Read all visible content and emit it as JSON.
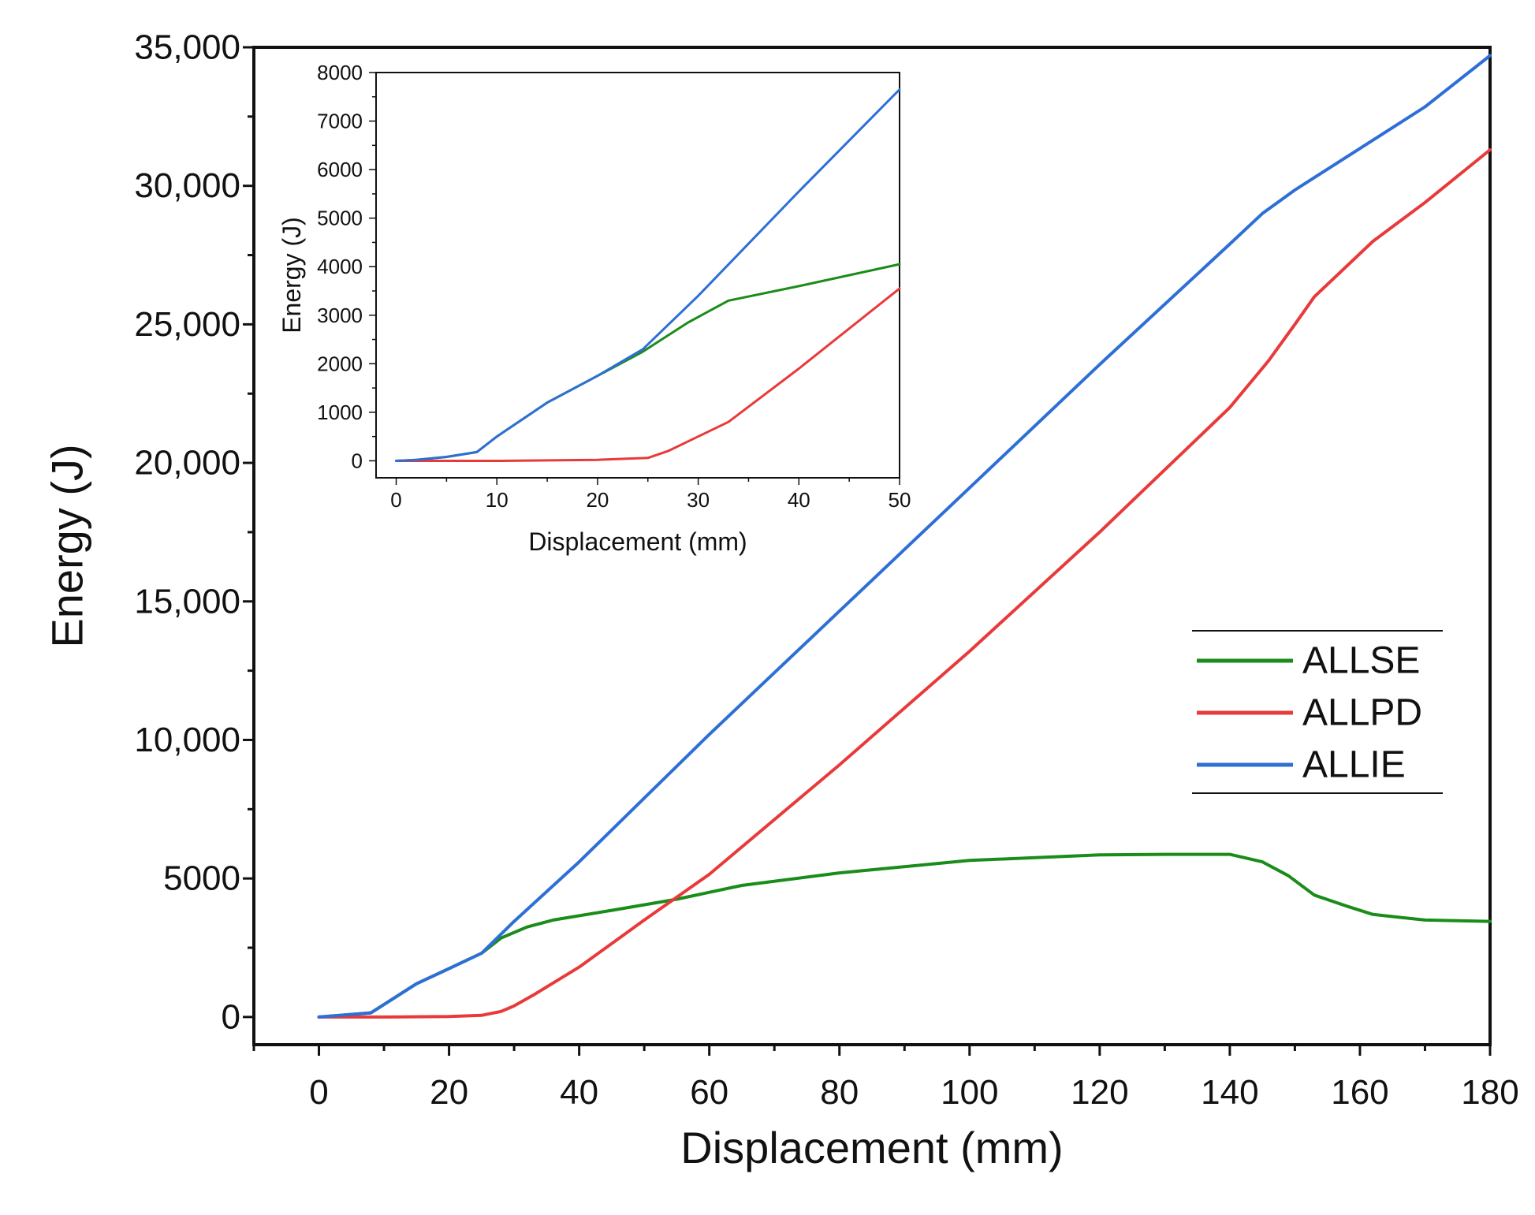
{
  "chart_data": [
    {
      "id": "main",
      "type": "line",
      "title": "",
      "xlabel": "Displacement (mm)",
      "ylabel": "Energy (J)",
      "xlim": [
        -10,
        180
      ],
      "ylim": [
        -1000,
        35000
      ],
      "x_ticks": [
        0,
        20,
        40,
        60,
        80,
        100,
        120,
        140,
        160,
        180
      ],
      "x_tick_labels": [
        "0",
        "20",
        "40",
        "60",
        "80",
        "100",
        "120",
        "140",
        "160",
        "180"
      ],
      "y_ticks": [
        0,
        5000,
        10000,
        15000,
        20000,
        25000,
        30000,
        35000
      ],
      "y_tick_labels": [
        "0",
        "5000",
        "10,000",
        "15,000",
        "20,000",
        "25,000",
        "30,000",
        "35,000"
      ],
      "grid": false,
      "legend": {
        "position": "right",
        "entries": [
          "ALLSE",
          "ALLPD",
          "ALLIE"
        ]
      },
      "series": [
        {
          "name": "ALLSE",
          "color": "#1a8c1a",
          "x": [
            0,
            8,
            15,
            20,
            25,
            28,
            32,
            36,
            45,
            55,
            65,
            80,
            100,
            120,
            130,
            140,
            145,
            149,
            153,
            158,
            162,
            170,
            180
          ],
          "y": [
            0,
            150,
            1200,
            1750,
            2300,
            2850,
            3250,
            3500,
            3850,
            4250,
            4750,
            5200,
            5650,
            5850,
            5870,
            5870,
            5600,
            5100,
            4400,
            4000,
            3700,
            3500,
            3450
          ]
        },
        {
          "name": "ALLPD",
          "color": "#e83a3a",
          "x": [
            0,
            10,
            20,
            25,
            28,
            30,
            33,
            40,
            50,
            60,
            80,
            100,
            120,
            140,
            146,
            150,
            153,
            162,
            170,
            180
          ],
          "y": [
            0,
            0,
            20,
            60,
            200,
            400,
            800,
            1800,
            3500,
            5150,
            9100,
            13200,
            17500,
            22000,
            23700,
            25000,
            26000,
            28000,
            29400,
            31300
          ]
        },
        {
          "name": "ALLIE",
          "color": "#2e6fd6",
          "x": [
            0,
            8,
            15,
            20,
            25,
            30,
            40,
            60,
            80,
            100,
            120,
            140,
            145,
            150,
            160,
            170,
            180
          ],
          "y": [
            0,
            150,
            1200,
            1750,
            2300,
            3450,
            5600,
            10200,
            14650,
            19100,
            23550,
            27900,
            29000,
            29850,
            31350,
            32850,
            34700
          ]
        }
      ]
    },
    {
      "id": "inset",
      "type": "line",
      "title": "",
      "xlabel": "Displacement (mm)",
      "ylabel": "Energy (J)",
      "xlim": [
        -2,
        50
      ],
      "ylim": [
        -350,
        8000
      ],
      "x_ticks": [
        0,
        10,
        20,
        30,
        40,
        50
      ],
      "x_tick_labels": [
        "0",
        "10",
        "20",
        "30",
        "40",
        "50"
      ],
      "y_ticks": [
        0,
        1000,
        2000,
        3000,
        4000,
        5000,
        6000,
        7000,
        8000
      ],
      "y_tick_labels": [
        "0",
        "1000",
        "2000",
        "3000",
        "4000",
        "5000",
        "6000",
        "7000",
        "8000"
      ],
      "grid": false,
      "series": [
        {
          "name": "ALLSE",
          "color": "#1a8c1a",
          "x": [
            0,
            2,
            5,
            8,
            10,
            15,
            20,
            24.5,
            26,
            29,
            33,
            40,
            50
          ],
          "y": [
            0,
            20,
            80,
            180,
            500,
            1200,
            1750,
            2250,
            2450,
            2850,
            3300,
            3600,
            4050
          ]
        },
        {
          "name": "ALLPD",
          "color": "#e83a3a",
          "x": [
            0,
            10,
            20,
            25,
            27,
            29,
            33,
            40,
            50
          ],
          "y": [
            0,
            0,
            20,
            60,
            200,
            400,
            800,
            1900,
            3550
          ]
        },
        {
          "name": "ALLIE",
          "color": "#2e6fd6",
          "x": [
            0,
            2,
            5,
            8,
            10,
            15,
            20,
            24.5,
            30,
            40,
            50
          ],
          "y": [
            0,
            20,
            80,
            180,
            500,
            1200,
            1750,
            2300,
            3400,
            5550,
            7650
          ]
        }
      ]
    }
  ]
}
